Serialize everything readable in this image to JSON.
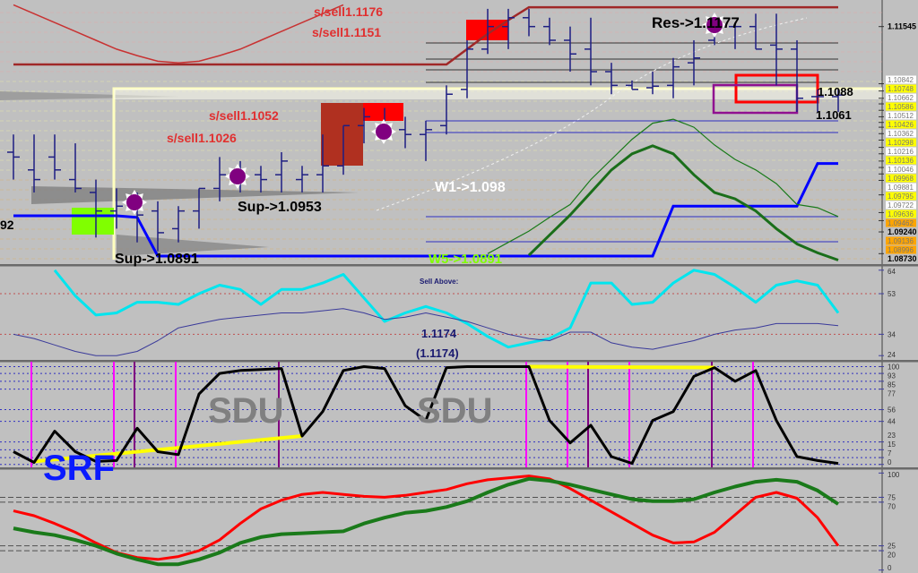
{
  "chart_data": [
    {
      "panel": "price",
      "type": "ohlc",
      "ylim": [
        1.086,
        1.1188
      ],
      "grid": false,
      "ohlc": [
        [
          1.0999,
          1.1021,
          1.0965,
          1.0993
        ],
        [
          1.0977,
          1.1021,
          1.0949,
          1.0965
        ],
        [
          1.0993,
          1.1021,
          1.0965,
          1.0977
        ],
        [
          1.0965,
          1.101,
          1.0949,
          1.0954
        ],
        [
          1.0949,
          1.0965,
          1.0893,
          1.0926
        ],
        [
          1.0926,
          1.0954,
          1.0904,
          1.0932
        ],
        [
          1.0932,
          1.0949,
          1.0887,
          1.0921
        ],
        [
          1.0926,
          1.0938,
          1.0876,
          1.0899
        ],
        [
          1.0904,
          1.0932,
          1.0887,
          1.0926
        ],
        [
          1.0926,
          1.0954,
          1.0904,
          1.0954
        ],
        [
          1.0954,
          1.0993,
          1.0938,
          1.0971
        ],
        [
          1.0971,
          1.0988,
          1.0949,
          1.0971
        ],
        [
          1.0971,
          1.0982,
          1.0949,
          1.0965
        ],
        [
          1.0971,
          1.0999,
          1.0949,
          1.0988
        ],
        [
          1.0965,
          1.0982,
          1.0949,
          1.0971
        ],
        [
          1.0971,
          1.1021,
          1.0949,
          1.0982
        ],
        [
          1.0982,
          1.1032,
          1.0971,
          1.1032
        ],
        [
          1.1032,
          1.1054,
          1.101,
          1.1043
        ],
        [
          1.1032,
          1.1054,
          1.1016,
          1.1027
        ],
        [
          1.1027,
          1.1043,
          1.1004,
          1.1021
        ],
        [
          1.1021,
          1.1038,
          1.0988,
          1.1027
        ],
        [
          1.1032,
          1.1082,
          1.1021,
          1.1071
        ],
        [
          1.1077,
          1.1138,
          1.1066,
          1.1127
        ],
        [
          1.1127,
          1.1177,
          1.1121,
          1.1155
        ],
        [
          1.1155,
          1.1177,
          1.1127,
          1.1166
        ],
        [
          1.1166,
          1.1177,
          1.1143,
          1.1155
        ],
        [
          1.1155,
          1.1166,
          1.1132,
          1.1138
        ],
        [
          1.1138,
          1.1155,
          1.1099,
          1.1121
        ],
        [
          1.1127,
          1.1166,
          1.1082,
          1.1099
        ],
        [
          1.1099,
          1.111,
          1.1071,
          1.1082
        ],
        [
          1.1082,
          1.1088,
          1.1077,
          1.1077
        ],
        [
          1.1079,
          1.1099,
          1.1071,
          1.1081
        ],
        [
          1.1082,
          1.1116,
          1.1066,
          1.1105
        ],
        [
          1.111,
          1.1138,
          1.1082,
          1.1116
        ],
        [
          1.1138,
          1.1171,
          1.1132,
          1.1155
        ],
        [
          1.1155,
          1.116,
          1.1127,
          1.1155
        ],
        [
          1.1155,
          1.1171,
          1.1127,
          1.1127
        ],
        [
          1.1132,
          1.1171,
          1.1082,
          1.1127
        ],
        [
          1.1127,
          1.1138,
          1.1049,
          1.1066
        ],
        [
          1.1068,
          1.1077,
          1.1049,
          1.1068
        ],
        [
          1.1068,
          1.1077,
          1.1049,
          1.107
        ]
      ],
      "series": [
        {
          "color": "#0000ff",
          "width": 3,
          "values": [
            1.092,
            1.092,
            1.092,
            1.092,
            1.092,
            1.092,
            1.0918,
            1.087,
            1.087,
            1.087,
            1.087,
            1.087,
            1.087,
            1.087,
            1.087,
            1.087,
            1.087,
            1.087,
            1.087,
            1.087,
            1.087,
            1.087,
            1.087,
            1.087,
            1.087,
            1.087,
            1.087,
            1.087,
            1.087,
            1.087,
            1.087,
            1.087,
            1.0932,
            1.0932,
            1.0932,
            1.0932,
            1.0932,
            1.0932,
            1.0932,
            1.0985,
            1.0985
          ]
        },
        {
          "color": "#1a6e1a",
          "width": 3,
          "values": [
            null,
            null,
            null,
            null,
            null,
            null,
            null,
            null,
            null,
            null,
            null,
            null,
            null,
            null,
            null,
            null,
            null,
            null,
            null,
            null,
            null,
            null,
            null,
            null,
            null,
            1.0871,
            1.0896,
            1.0921,
            1.0949,
            1.0977,
            1.0997,
            1.1007,
            1.0997,
            1.0971,
            1.0949,
            1.0941,
            1.0926,
            1.0904,
            1.0885,
            1.0874,
            1.0865
          ]
        },
        {
          "color": "#1a7a1a",
          "width": 1.2,
          "values": [
            null,
            null,
            null,
            null,
            null,
            null,
            null,
            null,
            null,
            null,
            null,
            null,
            null,
            null,
            null,
            null,
            null,
            null,
            null,
            null,
            null,
            null,
            null,
            1.0873,
            1.0887,
            1.0901,
            1.0918,
            1.0934,
            1.0965,
            1.099,
            1.1015,
            1.1035,
            1.104,
            1.103,
            1.1008,
            1.099,
            1.0977,
            1.096,
            1.0934,
            1.093,
            1.0919
          ]
        },
        {
          "color": "#c83232",
          "width": 1.5,
          "values": [
            1.1182,
            1.1171,
            1.116,
            1.1149,
            1.1138,
            1.1127,
            1.1119,
            1.1112,
            1.111,
            1.1112,
            1.1119,
            1.1127,
            1.1138,
            1.1149,
            1.116,
            1.1171,
            1.1182,
            null,
            null,
            null,
            null,
            null,
            null,
            null,
            null,
            null,
            null,
            null,
            null,
            null,
            null,
            null,
            null,
            null,
            null,
            null,
            null,
            null,
            null,
            null,
            null
          ]
        },
        {
          "color": "#a02828",
          "width": 2.5,
          "values": [
            1.1108,
            1.1108,
            1.1108,
            1.1108,
            1.1108,
            1.1108,
            1.1108,
            1.1108,
            1.1108,
            1.1108,
            1.1108,
            1.1108,
            1.1108,
            1.1108,
            1.1108,
            1.1108,
            1.1108,
            1.1108,
            1.1108,
            1.1108,
            1.1108,
            1.1108,
            1.1127,
            1.1146,
            1.1163,
            1.1179,
            1.1179,
            1.1179,
            1.1179,
            1.1179,
            1.1179,
            1.1179,
            1.1179,
            1.1179,
            1.1179,
            1.1179,
            1.1179,
            1.1179,
            1.1179,
            1.1179,
            1.1179
          ]
        }
      ],
      "annotations": {
        "sell1": "s/sell1.1176",
        "sell2": "s/sell1.1151",
        "sell3": "s/sell1.1052",
        "sell4": "s/sell1.1026",
        "res": "Res->1.1177",
        "level1": "1.1088",
        "level2": "1.1061",
        "w1": "W1->1.098",
        "sup1": "Sup->1.0953",
        "sup2": "Sup->1.0891",
        "w5": "W5->1.0891",
        "left_cut": "92"
      },
      "axis_labels": [
        {
          "text": "1.11545",
          "price": 1.1155,
          "bg": "#c0c0c0",
          "bold": true
        },
        {
          "text": "1.10842",
          "price": 1.1084,
          "bg": "#ffffff"
        },
        {
          "text": "1.10748",
          "price": 1.1075,
          "bg": "#ffff00"
        },
        {
          "text": "1.10662",
          "price": 1.1066,
          "bg": "#ffffff"
        },
        {
          "text": "1.10586",
          "price": 1.1059,
          "bg": "#ffff00"
        },
        {
          "text": "1.10512",
          "price": 1.1051,
          "bg": "#ffffff"
        },
        {
          "text": "1.10426",
          "price": 1.1043,
          "bg": "#ffff00"
        },
        {
          "text": "1.10362",
          "price": 1.1036,
          "bg": "#ffffff"
        },
        {
          "text": "1.10298",
          "price": 1.103,
          "bg": "#ffff00"
        },
        {
          "text": "1.10216",
          "price": 1.1022,
          "bg": "#ffffff"
        },
        {
          "text": "1.10136",
          "price": 1.1014,
          "bg": "#ffff00"
        },
        {
          "text": "1.10046",
          "price": 1.1005,
          "bg": "#ffffff"
        },
        {
          "text": "1.09968",
          "price": 1.0997,
          "bg": "#ffff00"
        },
        {
          "text": "1.09881",
          "price": 1.0988,
          "bg": "#ffffff"
        },
        {
          "text": "1.09795",
          "price": 1.098,
          "bg": "#ffff00"
        },
        {
          "text": "1.09722",
          "price": 1.0972,
          "bg": "#ffffff"
        },
        {
          "text": "1.09636",
          "price": 1.0964,
          "bg": "#ffff00"
        },
        {
          "text": "1.09462",
          "price": 1.0946,
          "bg": "#ffa500"
        },
        {
          "text": "1.09240",
          "price": 1.0924,
          "bg": "#c0c0c0",
          "bold": true
        },
        {
          "text": "1.09136",
          "price": 1.0914,
          "bg": "#ffa500"
        },
        {
          "text": "1.08996",
          "price": 1.09,
          "bg": "#ffa500"
        },
        {
          "text": "1.08730",
          "price": 1.0873,
          "bg": "#c0c0c0",
          "bold": true
        }
      ]
    },
    {
      "panel": "oscillator-1",
      "type": "line",
      "ylim": [
        22,
        66
      ],
      "ticks": [
        64,
        53,
        34,
        24
      ],
      "levels": [
        53,
        34
      ],
      "labels": {
        "sell_above": "Sell Above:",
        "value": "1.1174",
        "value_paren": "(1.1174)"
      },
      "series": [
        {
          "color": "#00e5ee",
          "width": 3,
          "values": [
            null,
            null,
            64,
            52,
            43,
            44,
            49,
            49,
            48,
            53,
            57,
            55,
            48,
            55,
            55,
            58,
            62,
            51,
            40,
            44,
            47,
            44,
            39,
            33,
            28,
            30,
            32,
            37,
            58,
            58,
            48,
            49,
            58,
            64,
            62,
            56,
            49,
            57,
            59,
            57,
            44
          ]
        },
        {
          "color": "#3a3a9a",
          "width": 1,
          "values": [
            34,
            32,
            29,
            26,
            24,
            24,
            26,
            31,
            37,
            39,
            41,
            42,
            43,
            44,
            44,
            45,
            46,
            44,
            41,
            42,
            44,
            42,
            40,
            37,
            34,
            32,
            31,
            35,
            35,
            30,
            28,
            27,
            29,
            31,
            34,
            36,
            37,
            39,
            39,
            39,
            38
          ]
        }
      ]
    },
    {
      "panel": "oscillator-2",
      "type": "line",
      "ylim": [
        -3,
        105
      ],
      "ticks": [
        100,
        93,
        85,
        77,
        56,
        44,
        23,
        15,
        7,
        0
      ],
      "watermarks": {
        "sdu1": "SDU",
        "sdu2": "SDU",
        "srf": "SRF"
      },
      "vlines_magenta": [
        1,
        5,
        8,
        25,
        27,
        30,
        36
      ],
      "vlines_purple": [
        6,
        13,
        28,
        34
      ],
      "trendlines": [
        [
          1,
          3,
          14,
          29
        ],
        [
          25,
          100,
          34,
          99
        ]
      ],
      "series": [
        {
          "color": "#000000",
          "width": 3,
          "values": [
            13,
            2,
            34,
            13,
            3,
            4,
            37,
            13,
            10,
            72,
            93,
            96,
            97,
            98,
            29,
            54,
            96,
            100,
            98,
            60,
            45,
            99,
            100,
            100,
            100,
            100,
            45,
            22,
            40,
            8,
            1,
            45,
            54,
            90,
            99,
            85,
            96,
            45,
            8,
            4,
            1
          ]
        }
      ]
    },
    {
      "panel": "oscillator-3",
      "type": "line",
      "ylim": [
        -3,
        104
      ],
      "ticks": [
        100,
        75,
        70,
        25,
        20,
        0
      ],
      "levels": [
        75,
        70,
        25,
        20
      ],
      "series": [
        {
          "color": "#ff0000",
          "width": 3,
          "values": [
            61,
            56,
            48,
            39,
            28,
            18,
            13,
            11,
            14,
            20,
            31,
            48,
            63,
            72,
            78,
            80,
            78,
            76,
            75,
            77,
            80,
            83,
            89,
            93,
            95,
            97,
            94,
            84,
            72,
            60,
            48,
            36,
            28,
            29,
            39,
            57,
            75,
            80,
            74,
            54,
            25
          ]
        },
        {
          "color": "#1a7a1a",
          "width": 4,
          "values": [
            43,
            39,
            36,
            31,
            25,
            17,
            11,
            6,
            6,
            11,
            18,
            28,
            34,
            37,
            38,
            39,
            40,
            48,
            54,
            59,
            61,
            65,
            71,
            80,
            88,
            94,
            92,
            88,
            83,
            78,
            73,
            71,
            71,
            73,
            80,
            86,
            91,
            93,
            91,
            82,
            68
          ]
        }
      ]
    }
  ],
  "colors": {
    "background": "#c0c0c0",
    "bars": "#1e1e82",
    "sell_zone": "#ff0000",
    "brown_zone": "#b03020",
    "buy_zone": "#80ff00",
    "marker": "#800080"
  }
}
